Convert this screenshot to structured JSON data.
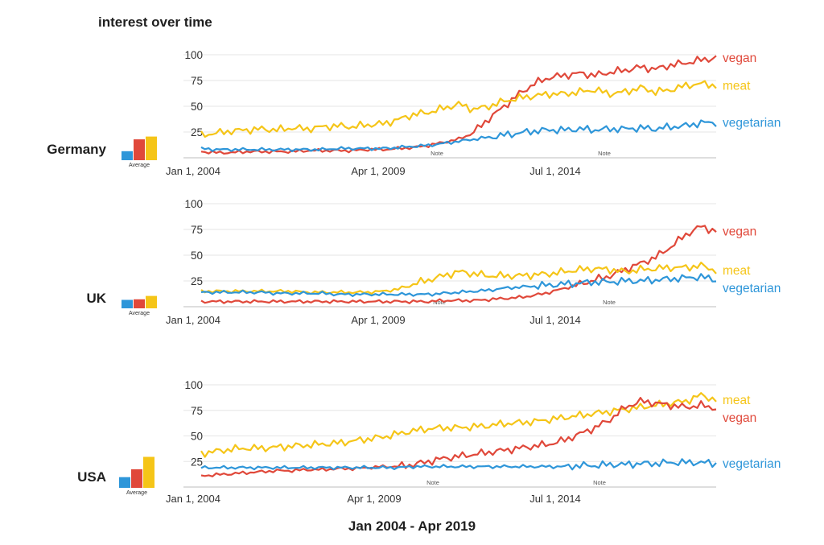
{
  "title": "interest over time",
  "footer": "Jan 2004 - Apr 2019",
  "colors": {
    "vegan": "#e0483a",
    "meat": "#f5c518",
    "vegetarian": "#2e96d9",
    "grid": "#e6e6e6",
    "axis": "#bdbdbd"
  },
  "average_label": "Average",
  "note_label": "Note",
  "chart_data": [
    {
      "type": "line",
      "title": "Germany",
      "x_start": "Jan 2004",
      "x_end": "Apr 2019",
      "xticks": [
        "Jan 1, 2004",
        "Apr 1, 2009",
        "Jul 1, 2014"
      ],
      "yticks": [
        25,
        50,
        75,
        100
      ],
      "ylim": [
        0,
        100
      ],
      "notes": [
        "Note",
        "Note"
      ],
      "end_labels": [
        "vegan",
        "meat",
        "vegetarian"
      ],
      "series": [
        {
          "name": "vegan",
          "color": "#e0483a",
          "values": [
            6,
            5,
            5,
            6,
            6,
            6,
            6,
            7,
            7,
            7,
            7,
            8,
            8,
            9,
            10,
            12,
            15,
            18,
            25,
            38,
            50,
            62,
            72,
            78,
            80,
            82,
            80,
            83,
            85,
            88,
            86,
            90,
            92,
            95,
            97
          ]
        },
        {
          "name": "meat",
          "color": "#f5c518",
          "values": [
            22,
            24,
            26,
            27,
            28,
            27,
            29,
            28,
            30,
            31,
            30,
            32,
            33,
            37,
            42,
            44,
            48,
            52,
            47,
            50,
            55,
            58,
            60,
            62,
            62,
            64,
            66,
            62,
            64,
            68,
            64,
            66,
            70,
            72,
            70
          ]
        },
        {
          "name": "vegetarian",
          "color": "#2e96d9",
          "values": [
            9,
            8,
            8,
            8,
            8,
            8,
            8,
            8,
            8,
            9,
            9,
            9,
            9,
            10,
            11,
            12,
            14,
            16,
            18,
            20,
            22,
            24,
            26,
            27,
            27,
            28,
            27,
            28,
            28,
            29,
            28,
            30,
            31,
            34,
            34
          ]
        }
      ],
      "averages": [
        {
          "name": "vegetarian",
          "value": 16
        },
        {
          "name": "vegan",
          "value": 37
        },
        {
          "name": "meat",
          "value": 42
        }
      ]
    },
    {
      "type": "line",
      "title": "UK",
      "x_start": "Jan 2004",
      "x_end": "Apr 2019",
      "xticks": [
        "Jan 1, 2004",
        "Apr 1, 2009",
        "Jul 1, 2014"
      ],
      "yticks": [
        25,
        50,
        75,
        100
      ],
      "ylim": [
        0,
        100
      ],
      "notes": [
        "Note",
        "Note"
      ],
      "end_labels": [
        "vegan",
        "meat",
        "vegetarian"
      ],
      "series": [
        {
          "name": "vegan",
          "color": "#e0483a",
          "values": [
            5,
            5,
            5,
            5,
            5,
            5,
            5,
            5,
            5,
            5,
            5,
            5,
            5,
            5,
            5,
            5,
            6,
            6,
            6,
            7,
            8,
            9,
            11,
            14,
            18,
            22,
            26,
            30,
            36,
            42,
            48,
            58,
            70,
            78,
            73
          ]
        },
        {
          "name": "meat",
          "color": "#f5c518",
          "values": [
            15,
            15,
            15,
            15,
            15,
            15,
            15,
            14,
            14,
            14,
            14,
            14,
            15,
            17,
            22,
            26,
            30,
            34,
            32,
            30,
            30,
            30,
            31,
            32,
            34,
            36,
            37,
            36,
            34,
            36,
            37,
            38,
            38,
            40,
            35
          ]
        },
        {
          "name": "vegetarian",
          "color": "#2e96d9",
          "values": [
            14,
            14,
            14,
            14,
            14,
            13,
            13,
            13,
            13,
            12,
            12,
            12,
            12,
            12,
            12,
            12,
            13,
            14,
            15,
            16,
            18,
            19,
            20,
            21,
            22,
            23,
            24,
            24,
            25,
            25,
            26,
            27,
            28,
            29,
            26
          ]
        }
      ],
      "averages": [
        {
          "name": "vegetarian",
          "value": 15
        },
        {
          "name": "vegan",
          "value": 16
        },
        {
          "name": "meat",
          "value": 22
        }
      ]
    },
    {
      "type": "line",
      "title": "USA",
      "x_start": "Jan 2004",
      "x_end": "Apr 2019",
      "xticks": [
        "Jan 1, 2004",
        "Apr 1, 2009",
        "Jul 1, 2014"
      ],
      "yticks": [
        25,
        50,
        75,
        100
      ],
      "ylim": [
        0,
        100
      ],
      "notes": [
        "Note",
        "Note"
      ],
      "end_labels": [
        "meat",
        "vegan",
        "vegetarian"
      ],
      "series": [
        {
          "name": "meat",
          "color": "#f5c518",
          "values": [
            33,
            35,
            37,
            38,
            38,
            39,
            40,
            41,
            42,
            43,
            45,
            47,
            49,
            52,
            55,
            57,
            58,
            58,
            59,
            60,
            62,
            63,
            64,
            66,
            68,
            70,
            72,
            74,
            76,
            78,
            80,
            82,
            84,
            90,
            85
          ]
        },
        {
          "name": "vegan",
          "color": "#e0483a",
          "values": [
            11,
            12,
            13,
            14,
            15,
            16,
            16,
            17,
            17,
            18,
            18,
            19,
            20,
            20,
            22,
            25,
            28,
            30,
            32,
            34,
            36,
            38,
            40,
            42,
            46,
            52,
            58,
            66,
            78,
            84,
            82,
            80,
            78,
            80,
            77
          ]
        },
        {
          "name": "vegetarian",
          "color": "#2e96d9",
          "values": [
            19,
            19,
            19,
            19,
            19,
            19,
            19,
            19,
            19,
            19,
            19,
            19,
            19,
            19,
            20,
            20,
            20,
            20,
            20,
            20,
            20,
            20,
            20,
            20,
            20,
            21,
            21,
            22,
            22,
            23,
            23,
            24,
            24,
            24,
            23
          ]
        }
      ],
      "averages": [
        {
          "name": "vegetarian",
          "value": 19
        },
        {
          "name": "vegan",
          "value": 33
        },
        {
          "name": "meat",
          "value": 55
        }
      ]
    }
  ]
}
